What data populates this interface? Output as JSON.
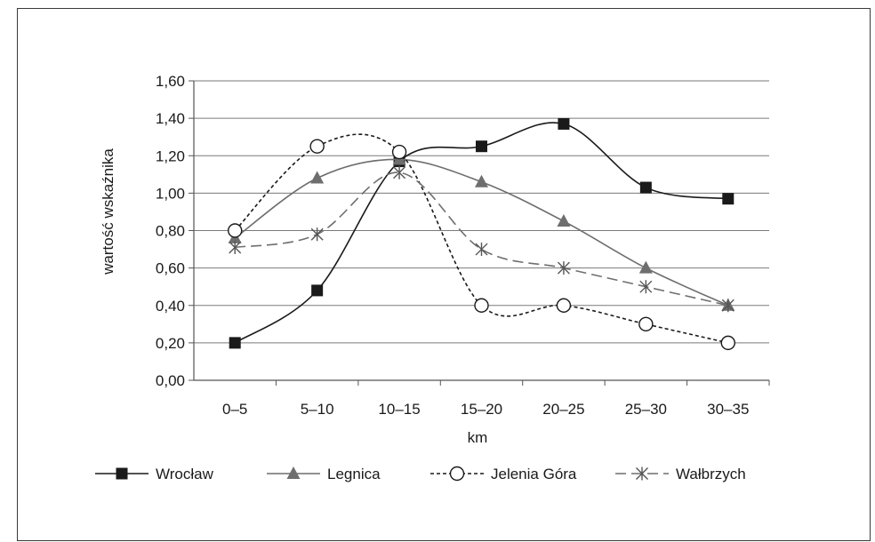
{
  "chart_data": {
    "type": "line",
    "categories": [
      "0–5",
      "5–10",
      "10–15",
      "15–20",
      "20–25",
      "25–30",
      "30–35"
    ],
    "xlabel": "km",
    "ylabel": "wartość wskaźnika",
    "ylim": [
      0,
      1.6
    ],
    "yticks": [
      "0,00",
      "0,20",
      "0,40",
      "0,60",
      "0,80",
      "1,00",
      "1,20",
      "1,40",
      "1,60"
    ],
    "grid": "horizontal",
    "legend_position": "bottom",
    "series": [
      {
        "name": "Wrocław",
        "values": [
          0.2,
          0.48,
          1.17,
          1.25,
          1.37,
          1.03,
          0.97
        ],
        "marker": "square",
        "dash": "solid",
        "color": "#1a1a1a"
      },
      {
        "name": "Legnica",
        "values": [
          0.76,
          1.08,
          1.18,
          1.06,
          0.85,
          0.6,
          0.4
        ],
        "marker": "triangle",
        "dash": "solid",
        "color": "#6e6e6e"
      },
      {
        "name": "Jelenia Góra",
        "values": [
          0.8,
          1.25,
          1.22,
          0.4,
          0.4,
          0.3,
          0.2
        ],
        "marker": "circle",
        "dash": "dotted",
        "color": "#1a1a1a"
      },
      {
        "name": "Wałbrzych",
        "values": [
          0.71,
          0.78,
          1.11,
          0.7,
          0.6,
          0.5,
          0.4
        ],
        "marker": "asterisk",
        "dash": "dashed",
        "color": "#6e6e6e"
      }
    ]
  }
}
